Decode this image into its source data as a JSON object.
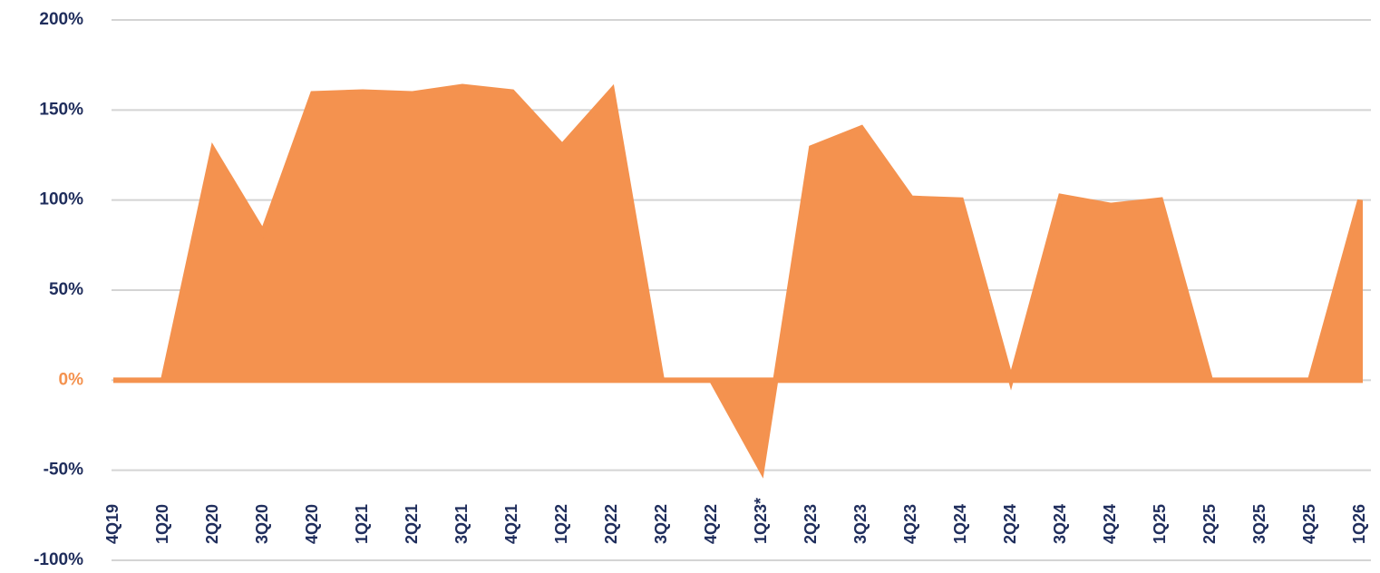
{
  "chart_data": {
    "type": "area",
    "categories": [
      "4Q19",
      "1Q20",
      "2Q20",
      "3Q20",
      "4Q20",
      "1Q21",
      "2Q21",
      "3Q21",
      "4Q21",
      "1Q22",
      "2Q22",
      "3Q22",
      "4Q22",
      "1Q23*",
      "2Q23",
      "3Q23",
      "4Q23",
      "1Q24",
      "2Q24",
      "3Q24",
      "4Q24",
      "1Q25",
      "2Q25",
      "3Q25",
      "4Q25",
      "1Q26"
    ],
    "series": [
      {
        "color": "#f4924f",
        "values": [
          0,
          0,
          128,
          82,
          159,
          160,
          159,
          163,
          160,
          130,
          161,
          0,
          0,
          -50,
          129,
          140,
          101,
          100,
          0,
          102,
          97,
          100,
          0,
          0,
          0,
          100
        ]
      }
    ],
    "ylim": [
      -100,
      200
    ],
    "yticks": [
      {
        "value": -100,
        "label": "-100%"
      },
      {
        "value": -50,
        "label": "-50%"
      },
      {
        "value": 0,
        "label": "0%"
      },
      {
        "value": 50,
        "label": "50%"
      },
      {
        "value": 100,
        "label": "100%"
      },
      {
        "value": 150,
        "label": "150%"
      },
      {
        "value": 200,
        "label": "200%"
      }
    ],
    "grid": true,
    "tick_label_color": "#1f2d5c"
  }
}
